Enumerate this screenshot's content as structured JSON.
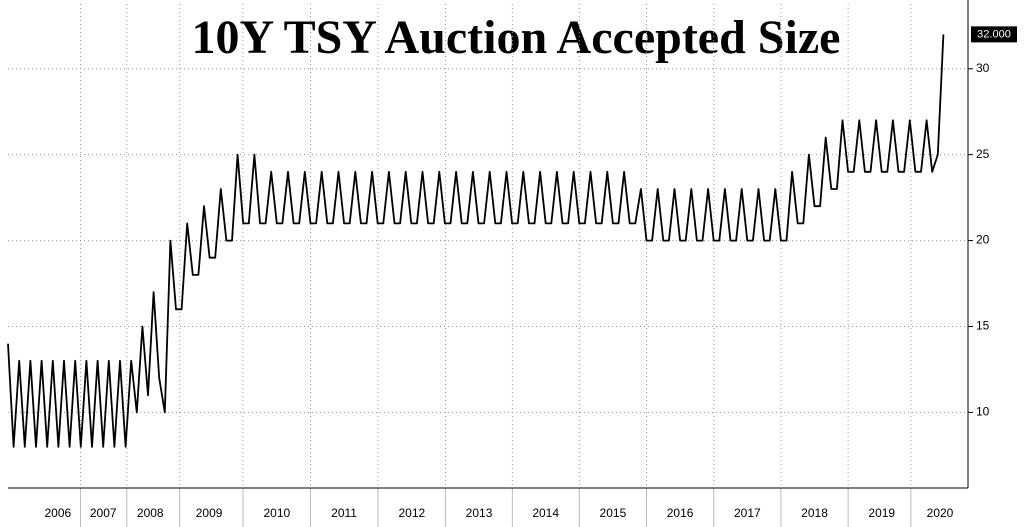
{
  "chart_data": {
    "type": "line",
    "title": "10Y TSY Auction Accepted Size",
    "series": [
      {
        "color": "#000000",
        "values": [
          14,
          8,
          13,
          8,
          13,
          8,
          13,
          8,
          13,
          8,
          13,
          8,
          13,
          8,
          13,
          8,
          13,
          8,
          13,
          8,
          13,
          8,
          13,
          10,
          15,
          11,
          17,
          12,
          10,
          20,
          16,
          16,
          21,
          18,
          18,
          22,
          19,
          19,
          23,
          20,
          20,
          25,
          21,
          21,
          25,
          21,
          21,
          24,
          21,
          21,
          24,
          21,
          21,
          24,
          21,
          21,
          24,
          21,
          21,
          24,
          21,
          21,
          24,
          21,
          21,
          24,
          21,
          21,
          24,
          21,
          21,
          24,
          21,
          21,
          24,
          21,
          21,
          24,
          21,
          21,
          24,
          21,
          21,
          24,
          21,
          21,
          24,
          21,
          21,
          24,
          21,
          21,
          24,
          21,
          21,
          24,
          21,
          21,
          24,
          21,
          21,
          24,
          21,
          21,
          24,
          21,
          21,
          24,
          21,
          21,
          24,
          21,
          21,
          23,
          20,
          20,
          23,
          20,
          20,
          23,
          20,
          20,
          23,
          20,
          20,
          23,
          20,
          20,
          23,
          20,
          20,
          23,
          20,
          20,
          23,
          20,
          20,
          23,
          20,
          20,
          24,
          21,
          21,
          25,
          22,
          22,
          26,
          23,
          23,
          27,
          24,
          24,
          27,
          24,
          24,
          27,
          24,
          24,
          27,
          24,
          24,
          27,
          24,
          24,
          27,
          24,
          25,
          32
        ]
      }
    ],
    "last_value_label": "32.000",
    "xlim": [
      0,
      171.4
    ],
    "xticks": [
      {
        "value": 8.9,
        "label": "2006"
      },
      {
        "value": 17,
        "label": "2007"
      },
      {
        "value": 25.4,
        "label": "2008"
      },
      {
        "value": 35.9,
        "label": "2009"
      },
      {
        "value": 48,
        "label": "2010"
      },
      {
        "value": 60,
        "label": "2011"
      },
      {
        "value": 72.1,
        "label": "2012"
      },
      {
        "value": 84.1,
        "label": "2013"
      },
      {
        "value": 96,
        "label": "2014"
      },
      {
        "value": 108,
        "label": "2015"
      },
      {
        "value": 120,
        "label": "2016"
      },
      {
        "value": 132,
        "label": "2017"
      },
      {
        "value": 144,
        "label": "2018"
      },
      {
        "value": 156,
        "label": "2019"
      },
      {
        "value": 166.4,
        "label": "2020"
      }
    ],
    "ylim": [
      5.6,
      34
    ],
    "yticks": [
      10,
      15,
      20,
      25,
      30
    ],
    "grid": true
  }
}
